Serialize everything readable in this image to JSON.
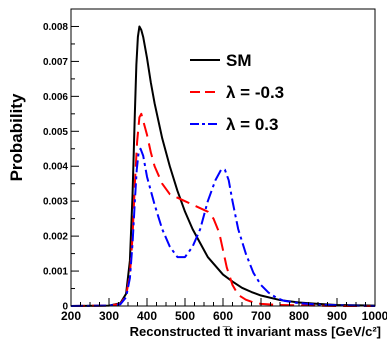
{
  "chart_data": {
    "type": "line",
    "title": "",
    "xlabel": "Reconstructed t̅t invariant mass [GeV/c²]",
    "ylabel": "Probability",
    "xlim": [
      200,
      1000
    ],
    "ylim": [
      0,
      0.0085
    ],
    "x_ticks": [
      "200",
      "300",
      "400",
      "500",
      "600",
      "700",
      "800",
      "900",
      "1000"
    ],
    "y_ticks": [
      "0",
      "0.001",
      "0.002",
      "0.003",
      "0.004",
      "0.005",
      "0.006",
      "0.007",
      "0.008"
    ],
    "grid": false,
    "legend_position": "top-right",
    "series": [
      {
        "name": "SM",
        "color": "#000000",
        "style": "solid",
        "x": [
          200,
          300,
          330,
          345,
          355,
          362,
          368,
          372,
          376,
          380,
          385,
          390,
          400,
          410,
          420,
          440,
          460,
          480,
          500,
          520,
          540,
          560,
          580,
          600,
          625,
          650,
          675,
          700,
          750,
          800,
          850,
          900,
          950,
          1000
        ],
        "y": [
          0,
          1e-05,
          8e-05,
          0.00035,
          0.0013,
          0.0032,
          0.0055,
          0.0069,
          0.0077,
          0.008,
          0.0079,
          0.0077,
          0.0071,
          0.0064,
          0.0058,
          0.0048,
          0.004,
          0.0033,
          0.0027,
          0.0022,
          0.0018,
          0.0014,
          0.00115,
          0.0009,
          0.0007,
          0.00052,
          0.0004,
          0.0003,
          0.00017,
          0.0001,
          6e-05,
          3e-05,
          2e-05,
          1e-05
        ]
      },
      {
        "name": "λ = -0.3",
        "color": "#ff0000",
        "style": "dashed",
        "x": [
          200,
          300,
          330,
          345,
          355,
          362,
          368,
          374,
          380,
          385,
          390,
          400,
          410,
          420,
          440,
          460,
          480,
          500,
          520,
          540,
          560,
          575,
          590,
          600,
          610,
          625,
          640,
          660,
          680,
          700,
          750,
          800,
          850,
          900,
          950,
          1000
        ],
        "y": [
          0,
          1e-05,
          6e-05,
          0.0003,
          0.0009,
          0.002,
          0.0035,
          0.0047,
          0.0054,
          0.0055,
          0.0053,
          0.0049,
          0.0044,
          0.004,
          0.0035,
          0.0032,
          0.0031,
          0.003,
          0.0029,
          0.0028,
          0.0027,
          0.0025,
          0.0021,
          0.0016,
          0.0011,
          0.0006,
          0.00032,
          0.00018,
          0.0001,
          6e-05,
          3e-05,
          2e-05,
          1e-05,
          0,
          0,
          0
        ]
      },
      {
        "name": "λ = 0.3",
        "color": "#0000ff",
        "style": "dash-dot",
        "x": [
          200,
          300,
          330,
          345,
          355,
          362,
          368,
          373,
          378,
          383,
          390,
          400,
          420,
          440,
          460,
          480,
          500,
          520,
          540,
          560,
          580,
          595,
          605,
          615,
          625,
          640,
          660,
          680,
          700,
          720,
          740,
          760,
          800,
          850,
          900,
          950,
          1000
        ],
        "y": [
          0,
          1e-05,
          5e-05,
          0.00025,
          0.0008,
          0.0018,
          0.003,
          0.0039,
          0.0044,
          0.0045,
          0.0043,
          0.0037,
          0.0029,
          0.0022,
          0.0017,
          0.0014,
          0.0014,
          0.0017,
          0.0022,
          0.003,
          0.0036,
          0.0039,
          0.0039,
          0.0036,
          0.003,
          0.0022,
          0.0015,
          0.00095,
          0.0006,
          0.00038,
          0.00024,
          0.00015,
          8e-05,
          4e-05,
          2e-05,
          1e-05,
          0
        ]
      }
    ]
  }
}
